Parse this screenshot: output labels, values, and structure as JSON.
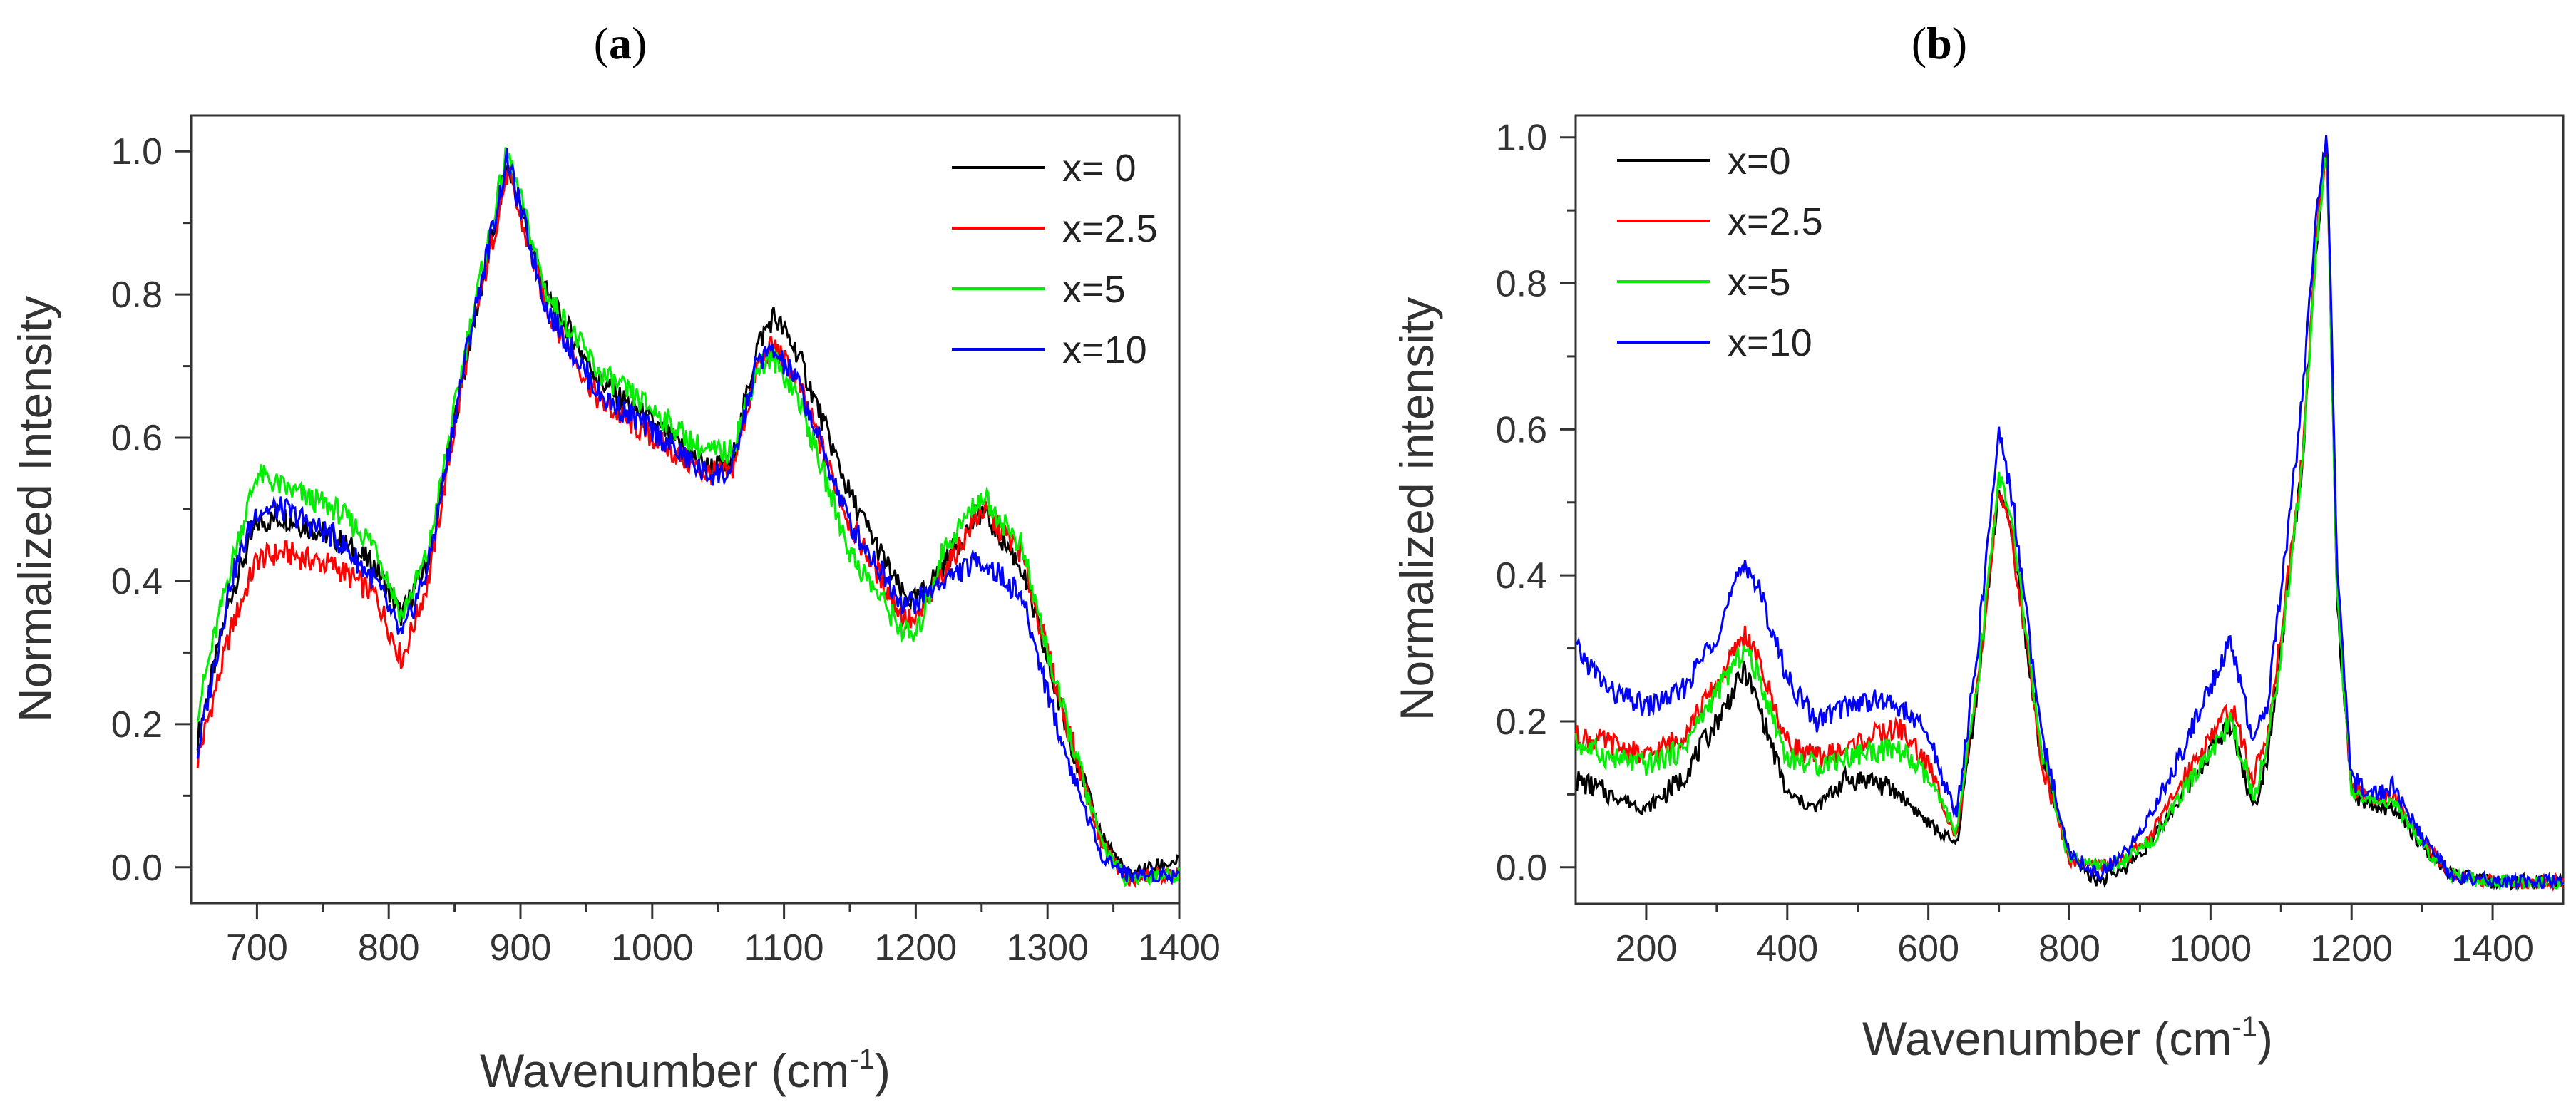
{
  "chart_data": [
    {
      "type": "line",
      "panel_label": "a",
      "xlabel": "Wavenumber (cm",
      "xlabel_sup": "-1",
      "xlabel_end": ")",
      "ylabel": "Normalized Intensity",
      "xlim": [
        650,
        1400
      ],
      "ylim": [
        -0.05,
        1.05
      ],
      "xticks": [
        700,
        800,
        900,
        1000,
        1100,
        1200,
        1300,
        1400
      ],
      "yticks": [
        0.0,
        0.2,
        0.4,
        0.6,
        0.8,
        1.0
      ],
      "ytick_labels": [
        "0.0",
        "0.2",
        "0.4",
        "0.6",
        "0.8",
        "1.0"
      ],
      "legend_position": "top-right",
      "series": [
        {
          "name": "x= 0",
          "color": "#000000",
          "x": [
            655,
            680,
            700,
            720,
            760,
            790,
            810,
            830,
            860,
            890,
            920,
            960,
            1000,
            1040,
            1060,
            1080,
            1092,
            1110,
            1150,
            1190,
            1200,
            1220,
            1250,
            1280,
            1310,
            1340,
            1360,
            1380,
            1400
          ],
          "y": [
            0.18,
            0.38,
            0.48,
            0.49,
            0.46,
            0.42,
            0.35,
            0.43,
            0.72,
            0.98,
            0.8,
            0.68,
            0.62,
            0.56,
            0.56,
            0.73,
            0.77,
            0.72,
            0.52,
            0.38,
            0.37,
            0.42,
            0.5,
            0.42,
            0.22,
            0.05,
            -0.01,
            0.0,
            0.01
          ]
        },
        {
          "name": "x=2.5",
          "color": "#ff0000",
          "x": [
            655,
            680,
            700,
            720,
            760,
            790,
            810,
            830,
            860,
            890,
            920,
            960,
            1000,
            1040,
            1060,
            1080,
            1092,
            1110,
            1150,
            1190,
            1200,
            1220,
            1250,
            1280,
            1310,
            1340,
            1360,
            1380,
            1400
          ],
          "y": [
            0.15,
            0.33,
            0.43,
            0.44,
            0.42,
            0.38,
            0.29,
            0.4,
            0.72,
            0.97,
            0.78,
            0.65,
            0.6,
            0.55,
            0.55,
            0.7,
            0.73,
            0.68,
            0.48,
            0.35,
            0.34,
            0.41,
            0.5,
            0.44,
            0.23,
            0.04,
            -0.02,
            -0.01,
            -0.01
          ]
        },
        {
          "name": "x=5",
          "color": "#00ee00",
          "x": [
            655,
            680,
            700,
            720,
            760,
            790,
            810,
            830,
            860,
            890,
            920,
            960,
            1000,
            1040,
            1060,
            1080,
            1092,
            1110,
            1150,
            1190,
            1200,
            1220,
            1250,
            1280,
            1310,
            1340,
            1360,
            1380,
            1400
          ],
          "y": [
            0.22,
            0.42,
            0.55,
            0.53,
            0.5,
            0.45,
            0.35,
            0.44,
            0.74,
            1.0,
            0.8,
            0.69,
            0.64,
            0.58,
            0.58,
            0.7,
            0.71,
            0.66,
            0.44,
            0.33,
            0.32,
            0.44,
            0.52,
            0.45,
            0.23,
            0.04,
            -0.02,
            -0.01,
            -0.01
          ]
        },
        {
          "name": "x=10",
          "color": "#0000ff",
          "x": [
            655,
            680,
            700,
            720,
            760,
            790,
            810,
            830,
            860,
            890,
            920,
            960,
            1000,
            1040,
            1060,
            1080,
            1092,
            1110,
            1150,
            1190,
            1200,
            1220,
            1250,
            1280,
            1310,
            1340,
            1360,
            1380,
            1400
          ],
          "y": [
            0.16,
            0.4,
            0.5,
            0.5,
            0.46,
            0.4,
            0.32,
            0.42,
            0.73,
            0.99,
            0.78,
            0.66,
            0.61,
            0.55,
            0.55,
            0.71,
            0.72,
            0.68,
            0.48,
            0.37,
            0.37,
            0.4,
            0.43,
            0.38,
            0.18,
            0.02,
            -0.01,
            -0.01,
            -0.01
          ]
        }
      ]
    },
    {
      "type": "line",
      "panel_label": "b",
      "xlabel": "Wavenumber (cm",
      "xlabel_sup": "-1",
      "xlabel_end": ")",
      "ylabel": "Normalized intensity",
      "xlim": [
        100,
        1500
      ],
      "ylim": [
        -0.05,
        1.03
      ],
      "xticks": [
        200,
        400,
        600,
        800,
        1000,
        1200,
        1400
      ],
      "yticks": [
        0.0,
        0.2,
        0.4,
        0.6,
        0.8,
        1.0
      ],
      "ytick_labels": [
        "0.0",
        "0.2",
        "0.4",
        "0.6",
        "0.8",
        "1.0"
      ],
      "legend_position": "top-left",
      "series": [
        {
          "name": "x=0",
          "color": "#000000",
          "x": [
            100,
            150,
            200,
            250,
            300,
            340,
            360,
            400,
            440,
            480,
            520,
            560,
            600,
            640,
            670,
            700,
            720,
            760,
            800,
            840,
            880,
            920,
            960,
            1000,
            1030,
            1060,
            1080,
            1100,
            1130,
            1150,
            1165,
            1180,
            1200,
            1230,
            1260,
            1300,
            1340,
            1400,
            1450,
            1500
          ],
          "y": [
            0.12,
            0.1,
            0.08,
            0.12,
            0.2,
            0.27,
            0.22,
            0.1,
            0.08,
            0.12,
            0.12,
            0.1,
            0.06,
            0.03,
            0.25,
            0.52,
            0.45,
            0.15,
            0.02,
            -0.02,
            0.0,
            0.04,
            0.1,
            0.16,
            0.2,
            0.08,
            0.15,
            0.3,
            0.55,
            0.85,
            0.99,
            0.35,
            0.1,
            0.08,
            0.08,
            0.03,
            -0.01,
            -0.02,
            -0.02,
            -0.02
          ]
        },
        {
          "name": "x=2.5",
          "color": "#ff0000",
          "x": [
            100,
            150,
            200,
            250,
            300,
            340,
            360,
            400,
            440,
            480,
            520,
            560,
            600,
            640,
            670,
            700,
            720,
            760,
            800,
            840,
            880,
            920,
            960,
            1000,
            1030,
            1060,
            1080,
            1100,
            1130,
            1150,
            1165,
            1180,
            1200,
            1230,
            1260,
            1300,
            1340,
            1400,
            1450,
            1500
          ],
          "y": [
            0.18,
            0.17,
            0.15,
            0.18,
            0.25,
            0.32,
            0.28,
            0.17,
            0.15,
            0.16,
            0.18,
            0.19,
            0.14,
            0.04,
            0.25,
            0.52,
            0.44,
            0.15,
            0.01,
            0.0,
            0.01,
            0.05,
            0.12,
            0.18,
            0.22,
            0.12,
            0.18,
            0.32,
            0.56,
            0.86,
            0.99,
            0.38,
            0.11,
            0.09,
            0.1,
            0.04,
            -0.01,
            -0.02,
            -0.02,
            -0.02
          ]
        },
        {
          "name": "x=5",
          "color": "#00ee00",
          "x": [
            100,
            150,
            200,
            250,
            300,
            340,
            360,
            400,
            440,
            480,
            520,
            560,
            600,
            640,
            670,
            700,
            720,
            760,
            800,
            840,
            880,
            920,
            960,
            1000,
            1030,
            1060,
            1080,
            1100,
            1130,
            1150,
            1165,
            1180,
            1200,
            1230,
            1260,
            1300,
            1340,
            1400,
            1450,
            1500
          ],
          "y": [
            0.17,
            0.15,
            0.14,
            0.16,
            0.24,
            0.3,
            0.26,
            0.15,
            0.14,
            0.15,
            0.16,
            0.16,
            0.12,
            0.05,
            0.25,
            0.54,
            0.46,
            0.16,
            0.01,
            0.0,
            0.01,
            0.04,
            0.1,
            0.16,
            0.2,
            0.1,
            0.16,
            0.3,
            0.55,
            0.85,
            0.99,
            0.36,
            0.1,
            0.09,
            0.09,
            0.03,
            -0.01,
            -0.02,
            -0.02,
            -0.02
          ]
        },
        {
          "name": "x=10",
          "color": "#0000ff",
          "x": [
            100,
            150,
            200,
            250,
            300,
            340,
            360,
            400,
            440,
            480,
            520,
            560,
            600,
            640,
            670,
            700,
            720,
            760,
            800,
            840,
            880,
            920,
            960,
            1000,
            1030,
            1060,
            1080,
            1100,
            1130,
            1150,
            1165,
            1180,
            1200,
            1230,
            1260,
            1300,
            1340,
            1400,
            1450,
            1500
          ],
          "y": [
            0.3,
            0.24,
            0.22,
            0.24,
            0.32,
            0.42,
            0.38,
            0.26,
            0.2,
            0.22,
            0.23,
            0.22,
            0.18,
            0.07,
            0.3,
            0.6,
            0.5,
            0.18,
            0.02,
            -0.01,
            0.02,
            0.08,
            0.16,
            0.25,
            0.31,
            0.17,
            0.22,
            0.38,
            0.64,
            0.9,
            1.0,
            0.4,
            0.12,
            0.1,
            0.11,
            0.04,
            -0.01,
            -0.02,
            -0.02,
            -0.02
          ]
        }
      ]
    }
  ]
}
